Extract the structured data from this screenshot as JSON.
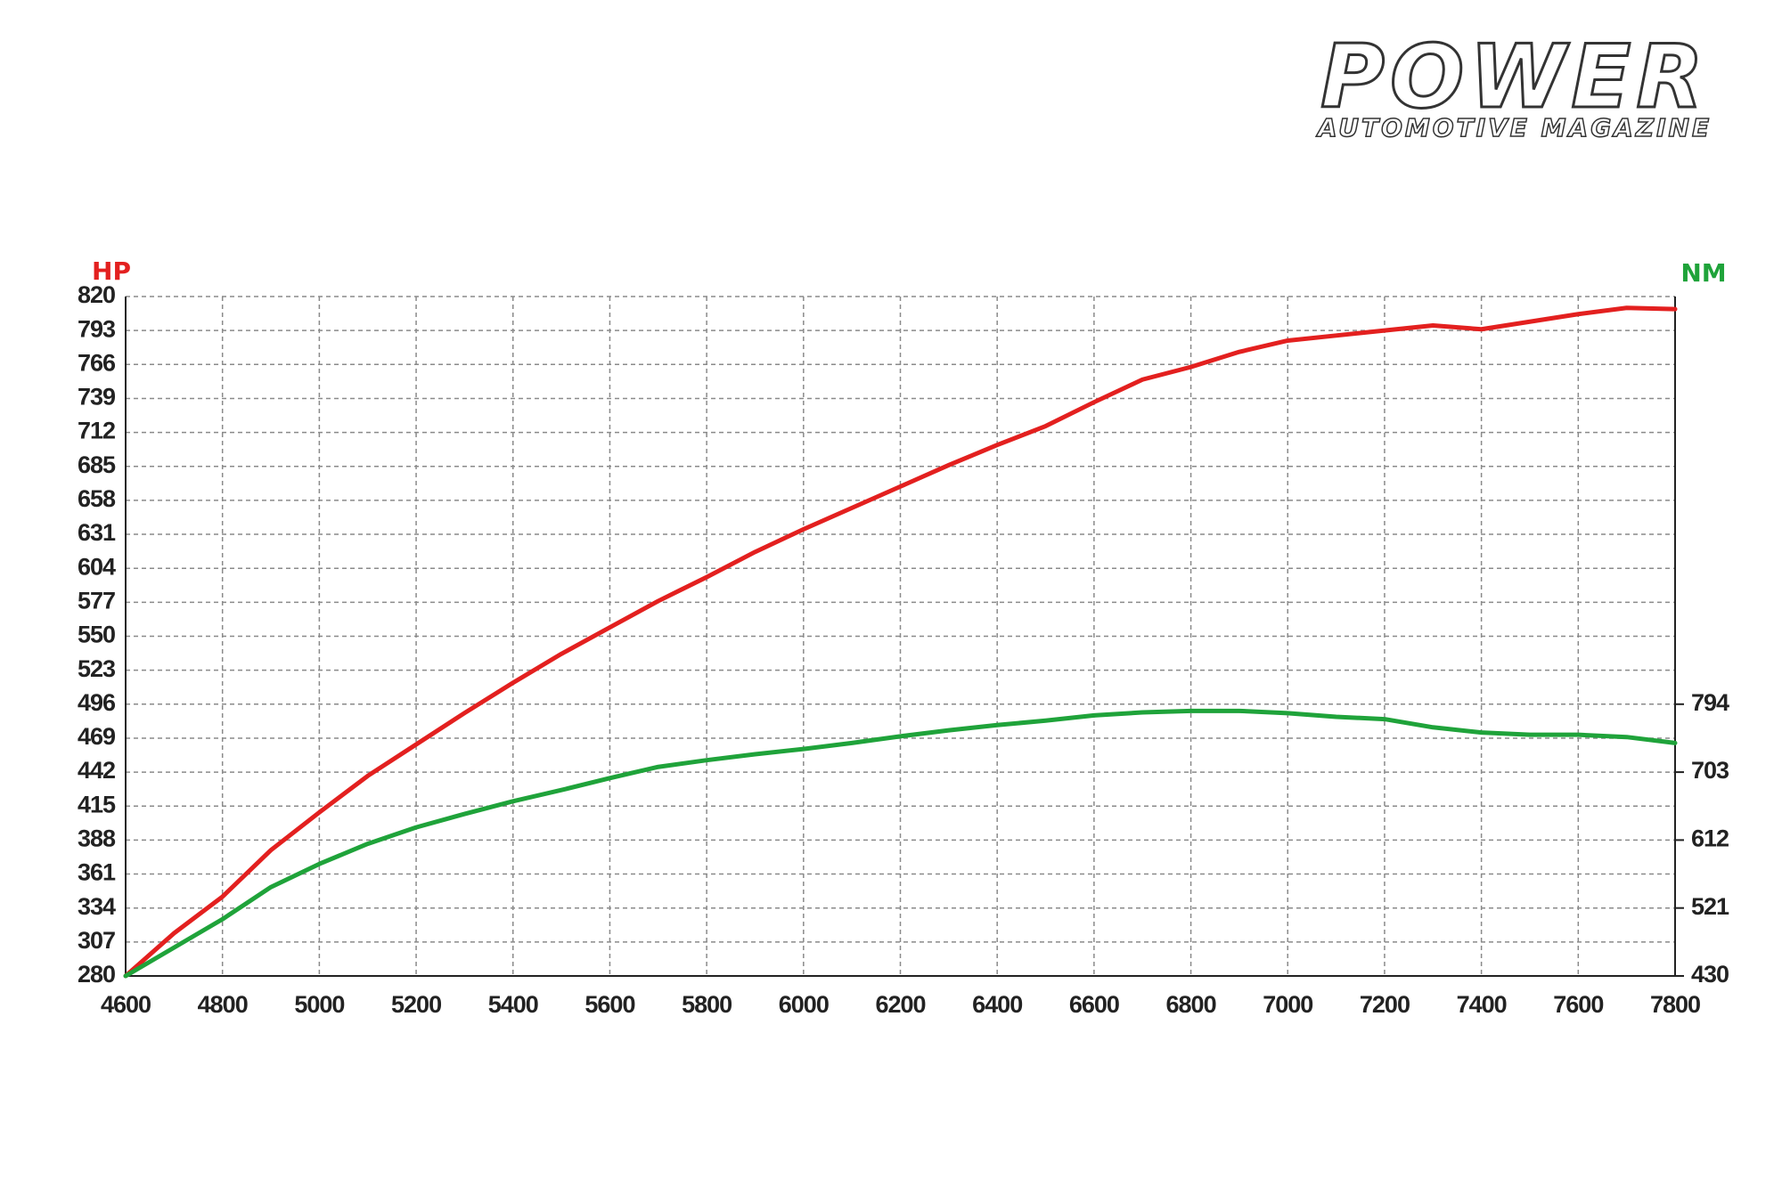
{
  "logo": {
    "title": "POWER",
    "subtitle": "AUTOMOTIVE MAGAZINE"
  },
  "chart_data": {
    "type": "line",
    "ylabel": "HP",
    "y2label": "NM",
    "x": [
      4600,
      4700,
      4800,
      4900,
      5000,
      5100,
      5200,
      5300,
      5400,
      5500,
      5600,
      5700,
      5800,
      5900,
      6000,
      6100,
      6200,
      6300,
      6400,
      6500,
      6600,
      6700,
      6800,
      6900,
      7000,
      7100,
      7200,
      7300,
      7400,
      7500,
      7600,
      7700,
      7800
    ],
    "xlim": [
      4600,
      7800
    ],
    "xticks": [
      4600,
      4800,
      5000,
      5200,
      5400,
      5600,
      5800,
      6000,
      6200,
      6400,
      6600,
      6800,
      7000,
      7200,
      7400,
      7600,
      7800
    ],
    "ylim": [
      280,
      820
    ],
    "yticks": [
      280,
      307,
      334,
      361,
      388,
      415,
      442,
      469,
      496,
      523,
      550,
      577,
      604,
      631,
      658,
      685,
      712,
      739,
      766,
      793,
      820
    ],
    "y2lim": [
      430,
      1340
    ],
    "y2ticks": [
      430,
      521,
      612,
      703,
      794
    ],
    "grid": true,
    "series": [
      {
        "name": "HP",
        "color": "#e3201f",
        "values": [
          280,
          314,
          343,
          380,
          410,
          439,
          464,
          489,
          513,
          536,
          557,
          578,
          597,
          617,
          635,
          652,
          669,
          686,
          702,
          717,
          736,
          754,
          764,
          776,
          785,
          789,
          793,
          797,
          794,
          800,
          806,
          811,
          810
        ]
      },
      {
        "name": "NM",
        "color": "#1fa33a",
        "axis": "y2",
        "values": [
          430,
          468,
          506,
          549,
          580,
          607,
          629,
          647,
          664,
          679,
          695,
          710,
          719,
          727,
          734,
          742,
          751,
          759,
          766,
          772,
          779,
          783,
          785,
          785,
          782,
          777,
          774,
          763,
          756,
          753,
          753,
          750,
          742
        ]
      }
    ]
  }
}
